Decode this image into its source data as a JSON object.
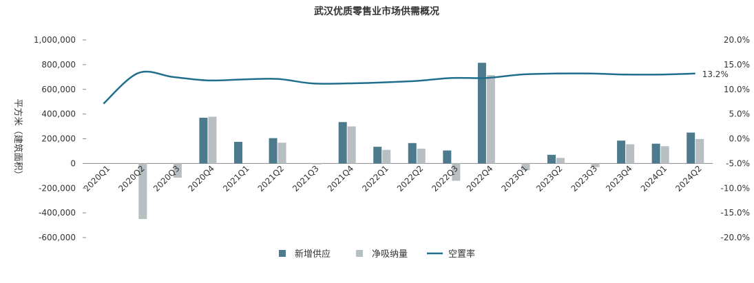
{
  "chart_data": {
    "type": "bar",
    "title": "武汉优质零售业市场供需概况",
    "ylabel": "平方米（建筑面积）",
    "categories": [
      "2020Q1",
      "2020Q2",
      "2020Q3",
      "2020Q4",
      "2021Q1",
      "2021Q2",
      "2021Q3",
      "2021Q4",
      "2022Q1",
      "2022Q2",
      "2022Q3",
      "2022Q4",
      "2023Q1",
      "2023Q2",
      "2023Q3",
      "2023Q4",
      "2024Q1",
      "2024Q2"
    ],
    "ylim": [
      -600000,
      1000000
    ],
    "y_ticks": [
      "1,000,000",
      "800,000",
      "600,000",
      "400,000",
      "200,000",
      "0",
      "-200,000",
      "-400,000",
      "-600,000"
    ],
    "y2lim": [
      -0.2,
      0.2
    ],
    "y2_ticks": [
      "20.0%",
      "15.0%",
      "10.0%",
      "5.0%",
      "0.0%",
      "-5.0%",
      "-10.0%",
      "-15.0%",
      "-20.0%"
    ],
    "series": [
      {
        "name": "新增供应",
        "kind": "bar",
        "color": "#4d7a8c",
        "values": [
          0,
          0,
          0,
          370000,
          175000,
          205000,
          0,
          335000,
          135000,
          165000,
          105000,
          815000,
          0,
          70000,
          0,
          185000,
          160000,
          250000
        ]
      },
      {
        "name": "净吸纳量",
        "kind": "bar",
        "color": "#b8bfc2",
        "values": [
          0,
          -450000,
          -115000,
          378000,
          0,
          168000,
          -8000,
          300000,
          110000,
          120000,
          -140000,
          715000,
          -55000,
          45000,
          -30000,
          155000,
          140000,
          198000
        ]
      },
      {
        "name": "空置率",
        "kind": "line",
        "axis": "right",
        "color": "#1f6e8c",
        "values": [
          0.071,
          0.133,
          0.125,
          0.118,
          0.12,
          0.121,
          0.112,
          0.112,
          0.114,
          0.117,
          0.123,
          0.123,
          0.13,
          0.132,
          0.132,
          0.13,
          0.13,
          0.132
        ]
      }
    ],
    "annotations": [
      {
        "text": "13.2%"
      }
    ],
    "legend_position": "bottom",
    "grid": false
  }
}
